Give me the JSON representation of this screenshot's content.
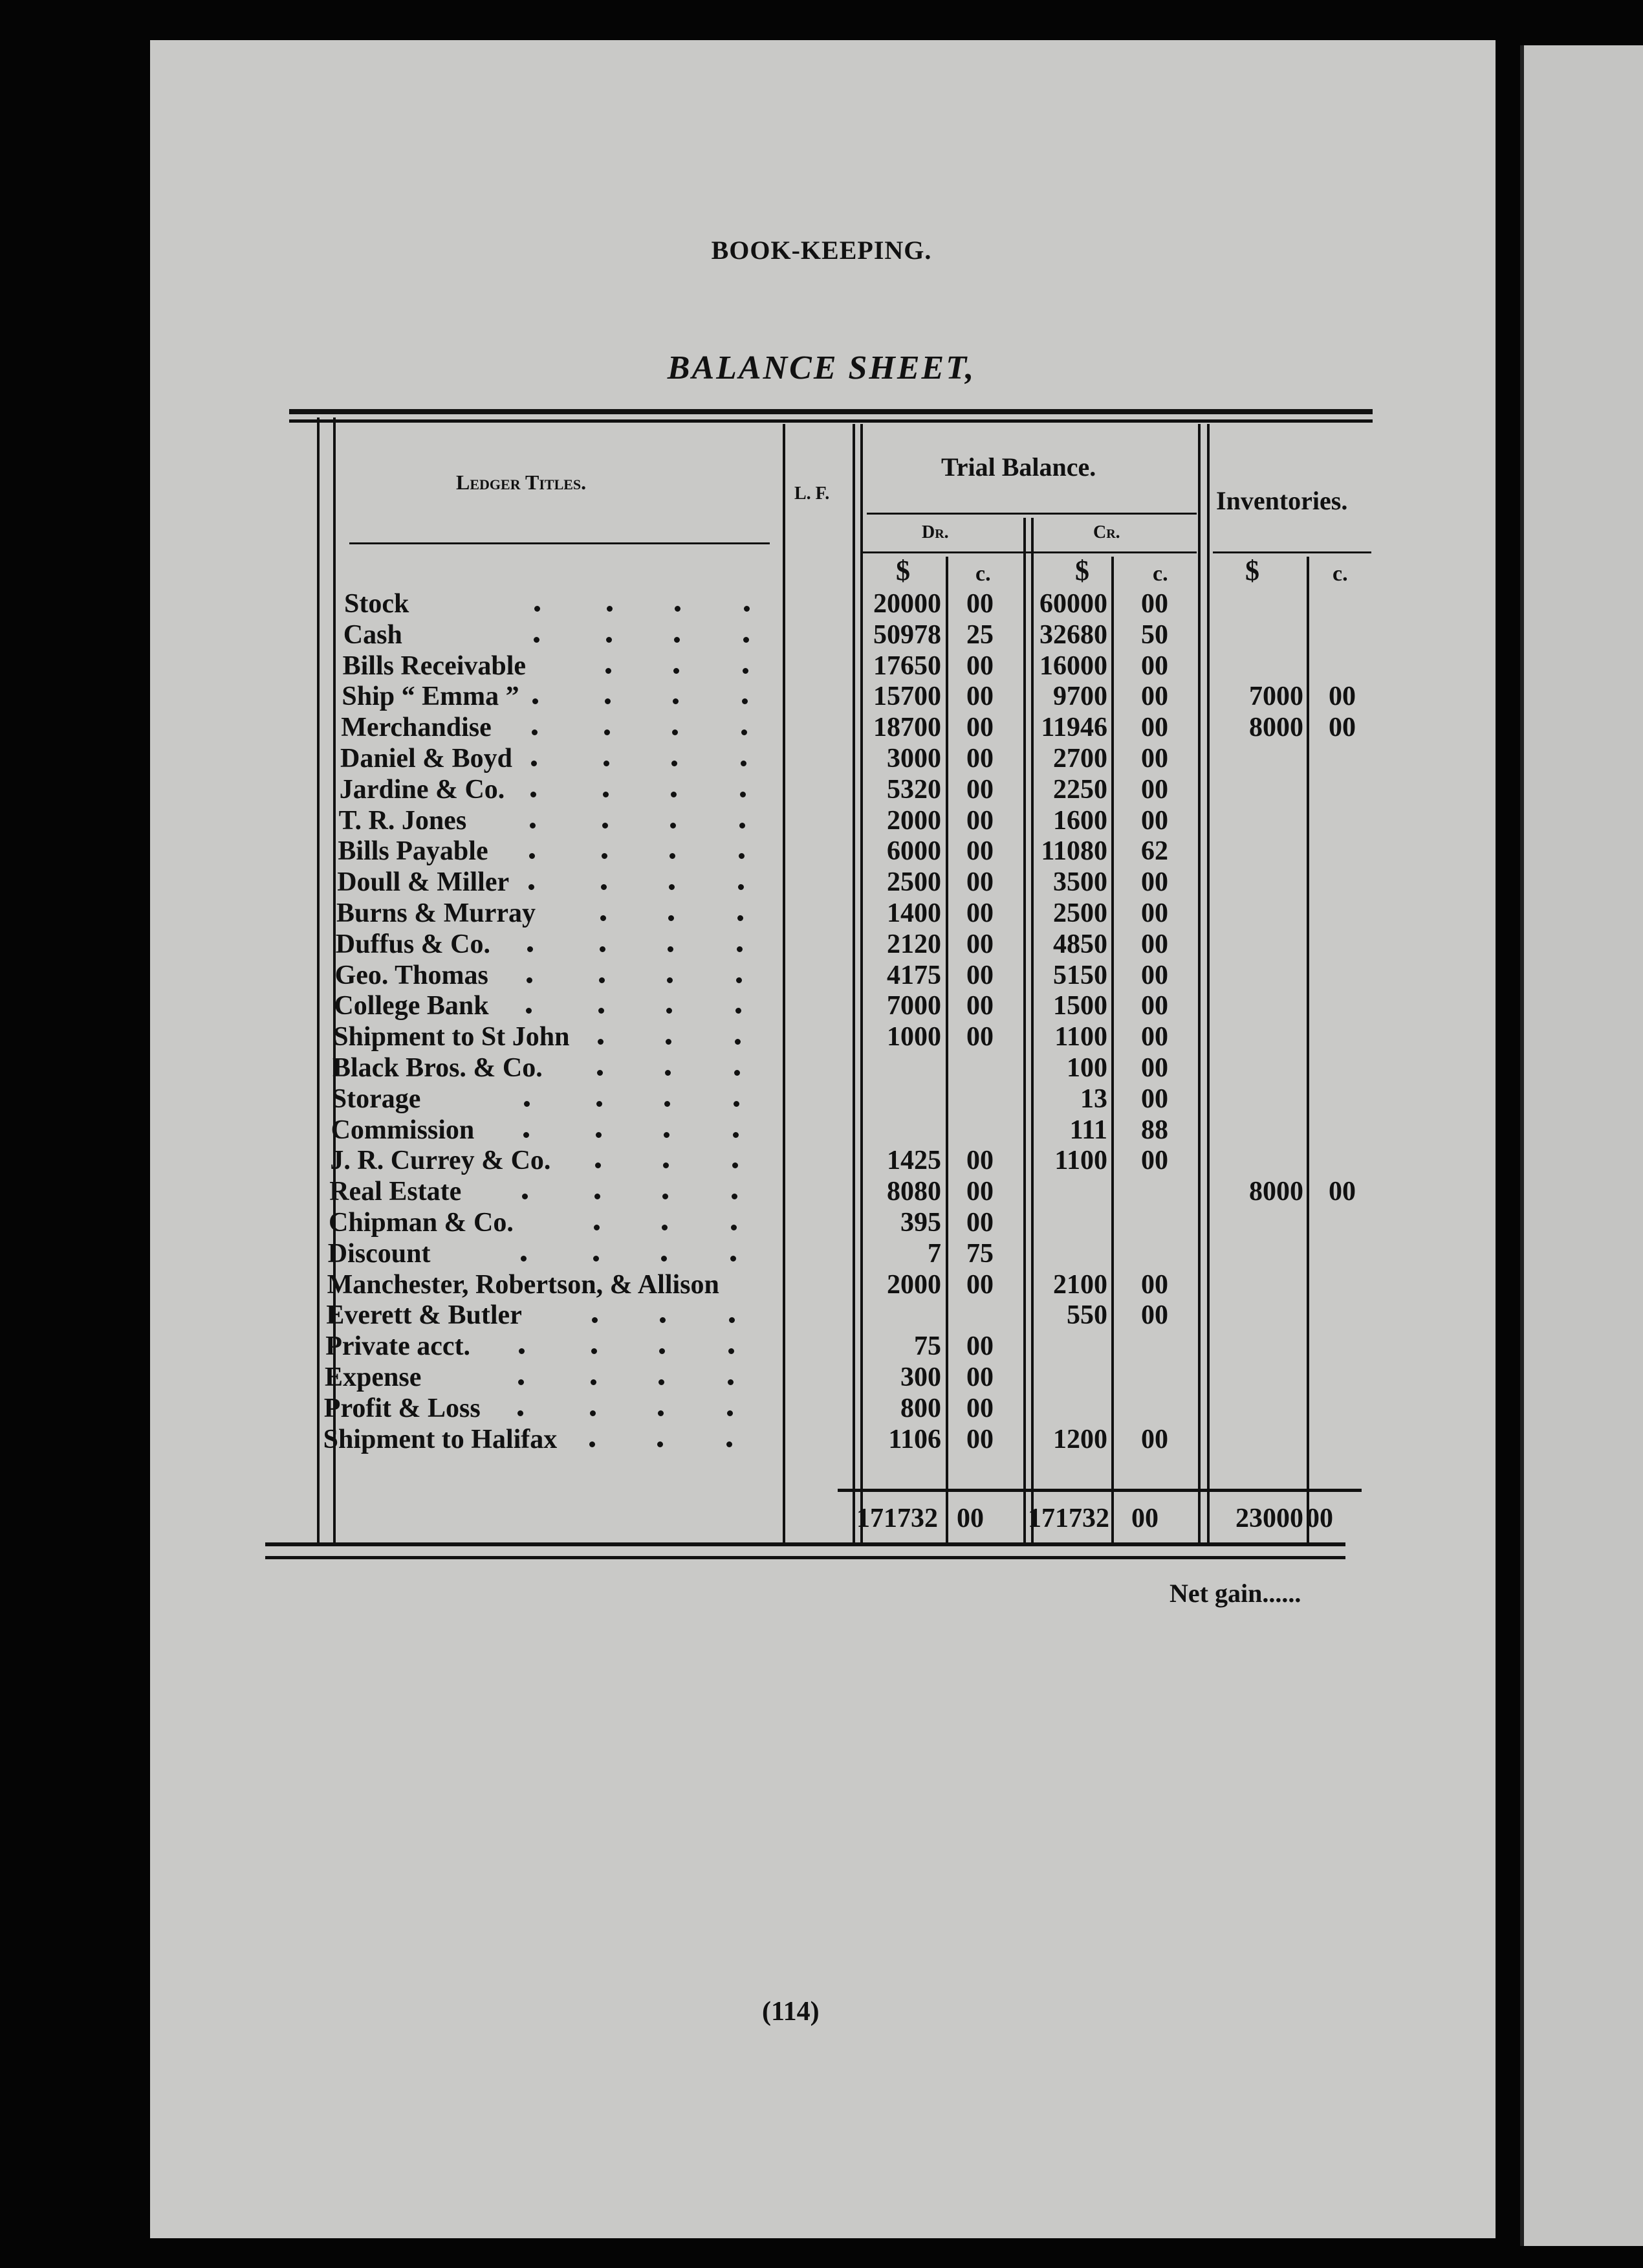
{
  "header": {
    "running_title": "BOOK-KEEPING.",
    "title": "BALANCE SHEET,"
  },
  "columns": {
    "ledger_titles": "Ledger Titles.",
    "lf": "L. F.",
    "trial_balance": "Trial Balance.",
    "dr": "Dr.",
    "cr": "Cr.",
    "inventories": "Inventories.",
    "dollar": "$",
    "cents": "c."
  },
  "rows": [
    {
      "title": "Stock",
      "dr": "20000",
      "dr_c": "00",
      "cr": "60000",
      "cr_c": "00",
      "inv": "",
      "inv_c": ""
    },
    {
      "title": "Cash",
      "dr": "50978",
      "dr_c": "25",
      "cr": "32680",
      "cr_c": "50",
      "inv": "",
      "inv_c": ""
    },
    {
      "title": "Bills Receivable",
      "dr": "17650",
      "dr_c": "00",
      "cr": "16000",
      "cr_c": "00",
      "inv": "",
      "inv_c": ""
    },
    {
      "title": "Ship “ Emma ”",
      "dr": "15700",
      "dr_c": "00",
      "cr": "9700",
      "cr_c": "00",
      "inv": "7000",
      "inv_c": "00"
    },
    {
      "title": "Merchandise",
      "dr": "18700",
      "dr_c": "00",
      "cr": "11946",
      "cr_c": "00",
      "inv": "8000",
      "inv_c": "00"
    },
    {
      "title": "Daniel & Boyd",
      "dr": "3000",
      "dr_c": "00",
      "cr": "2700",
      "cr_c": "00",
      "inv": "",
      "inv_c": ""
    },
    {
      "title": "Jardine & Co.",
      "dr": "5320",
      "dr_c": "00",
      "cr": "2250",
      "cr_c": "00",
      "inv": "",
      "inv_c": ""
    },
    {
      "title": "T. R. Jones",
      "dr": "2000",
      "dr_c": "00",
      "cr": "1600",
      "cr_c": "00",
      "inv": "",
      "inv_c": ""
    },
    {
      "title": "Bills Payable",
      "dr": "6000",
      "dr_c": "00",
      "cr": "11080",
      "cr_c": "62",
      "inv": "",
      "inv_c": ""
    },
    {
      "title": "Doull & Miller",
      "dr": "2500",
      "dr_c": "00",
      "cr": "3500",
      "cr_c": "00",
      "inv": "",
      "inv_c": ""
    },
    {
      "title": "Burns & Murray",
      "dr": "1400",
      "dr_c": "00",
      "cr": "2500",
      "cr_c": "00",
      "inv": "",
      "inv_c": ""
    },
    {
      "title": "Duffus & Co.",
      "dr": "2120",
      "dr_c": "00",
      "cr": "4850",
      "cr_c": "00",
      "inv": "",
      "inv_c": ""
    },
    {
      "title": "Geo. Thomas",
      "dr": "4175",
      "dr_c": "00",
      "cr": "5150",
      "cr_c": "00",
      "inv": "",
      "inv_c": ""
    },
    {
      "title": "College Bank",
      "dr": "7000",
      "dr_c": "00",
      "cr": "1500",
      "cr_c": "00",
      "inv": "",
      "inv_c": ""
    },
    {
      "title": "Shipment to St John",
      "dr": "1000",
      "dr_c": "00",
      "cr": "1100",
      "cr_c": "00",
      "inv": "",
      "inv_c": ""
    },
    {
      "title": "Black Bros. & Co.",
      "dr": "",
      "dr_c": "",
      "cr": "100",
      "cr_c": "00",
      "inv": "",
      "inv_c": ""
    },
    {
      "title": "Storage",
      "dr": "",
      "dr_c": "",
      "cr": "13",
      "cr_c": "00",
      "inv": "",
      "inv_c": ""
    },
    {
      "title": "Commission",
      "dr": "",
      "dr_c": "",
      "cr": "111",
      "cr_c": "88",
      "inv": "",
      "inv_c": ""
    },
    {
      "title": "J. R. Currey & Co.",
      "dr": "1425",
      "dr_c": "00",
      "cr": "1100",
      "cr_c": "00",
      "inv": "",
      "inv_c": ""
    },
    {
      "title": "Real Estate",
      "dr": "8080",
      "dr_c": "00",
      "cr": "",
      "cr_c": "",
      "inv": "8000",
      "inv_c": "00"
    },
    {
      "title": "Chipman & Co.",
      "dr": "395",
      "dr_c": "00",
      "cr": "",
      "cr_c": "",
      "inv": "",
      "inv_c": ""
    },
    {
      "title": "Discount",
      "dr": "7",
      "dr_c": "75",
      "cr": "",
      "cr_c": "",
      "inv": "",
      "inv_c": ""
    },
    {
      "title": "Manchester, Robertson, & Allison",
      "dr": "2000",
      "dr_c": "00",
      "cr": "2100",
      "cr_c": "00",
      "inv": "",
      "inv_c": ""
    },
    {
      "title": "Everett & Butler",
      "dr": "",
      "dr_c": "",
      "cr": "550",
      "cr_c": "00",
      "inv": "",
      "inv_c": ""
    },
    {
      "title": "Private acct.",
      "dr": "75",
      "dr_c": "00",
      "cr": "",
      "cr_c": "",
      "inv": "",
      "inv_c": ""
    },
    {
      "title": "Expense",
      "dr": "300",
      "dr_c": "00",
      "cr": "",
      "cr_c": "",
      "inv": "",
      "inv_c": ""
    },
    {
      "title": "Profit & Loss",
      "dr": "800",
      "dr_c": "00",
      "cr": "",
      "cr_c": "",
      "inv": "",
      "inv_c": ""
    },
    {
      "title": "Shipment to Halifax",
      "dr": "1106",
      "dr_c": "00",
      "cr": "1200",
      "cr_c": "00",
      "inv": "",
      "inv_c": ""
    }
  ],
  "totals": {
    "dr": "171732",
    "dr_c": "00",
    "cr": "171732",
    "cr_c": "00",
    "inv": "23000",
    "inv_c": "00"
  },
  "net_gain": "Net gain......",
  "page_number": "(114)"
}
